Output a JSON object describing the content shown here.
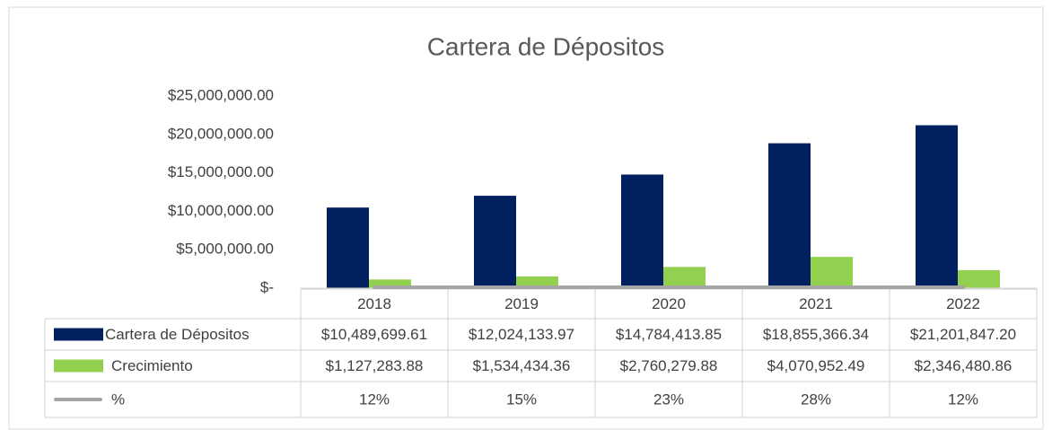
{
  "chart_data": {
    "type": "bar",
    "title": "Cartera de Dépositos",
    "categories": [
      "2018",
      "2019",
      "2020",
      "2021",
      "2022"
    ],
    "series": [
      {
        "name": "Cartera de Dépositos",
        "color": "#002060",
        "type": "bar",
        "values": [
          10489699.61,
          12024133.97,
          14784413.85,
          18855366.34,
          21201847.2
        ],
        "value_labels": [
          "$10,489,699.61",
          "$12,024,133.97",
          "$14,784,413.85",
          "$18,855,366.34",
          "$21,201,847.20"
        ]
      },
      {
        "name": "Crecimiento",
        "color": "#92d050",
        "type": "bar",
        "values": [
          1127283.88,
          1534434.36,
          2760279.88,
          4070952.49,
          2346480.86
        ],
        "value_labels": [
          "$1,127,283.88",
          "$1,534,434.36",
          "$2,760,279.88",
          "$4,070,952.49",
          "$2,346,480.86"
        ]
      },
      {
        "name": "%",
        "color": "#a6a6a6",
        "type": "line",
        "values": [
          12,
          15,
          23,
          28,
          12
        ],
        "value_labels": [
          "12%",
          "15%",
          "23%",
          "28%",
          "12%"
        ]
      }
    ],
    "ylim": [
      0,
      25000000
    ],
    "yticks": [
      {
        "value": 0,
        "label": "$-"
      },
      {
        "value": 5000000,
        "label": "$5,000,000.00"
      },
      {
        "value": 10000000,
        "label": "$10,000,000.00"
      },
      {
        "value": 15000000,
        "label": "$15,000,000.00"
      },
      {
        "value": 20000000,
        "label": "$20,000,000.00"
      },
      {
        "value": 25000000,
        "label": "$25,000,000.00"
      }
    ],
    "grid": false
  }
}
